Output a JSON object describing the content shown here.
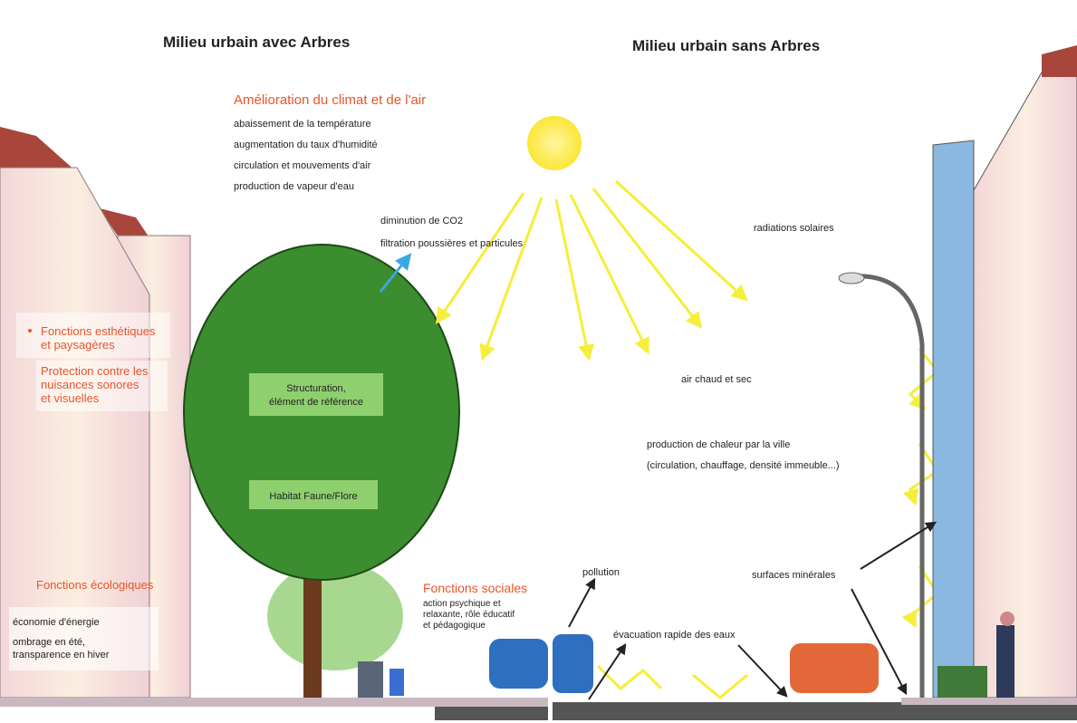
{
  "left": {
    "title": "Milieu urbain avec Arbres",
    "climate": {
      "heading": "Amélioration du climat et de l'air",
      "items": [
        "abaissement de la température",
        "augmentation du taux d'humidité",
        "circulation et mouvements d'air",
        "production de vapeur d'eau"
      ]
    },
    "air": [
      "diminution de CO2",
      "filtration poussières et particules"
    ],
    "aesthetic": [
      "Fonctions esthétiques",
      "et paysagères"
    ],
    "protection": [
      "Protection contre les",
      "nuisances sonores",
      "et visuelles"
    ],
    "structuring": [
      "Structuration,",
      "élément de référence"
    ],
    "habitat": "Habitat Faune/Flore",
    "ecological": {
      "heading": "Fonctions écologiques",
      "items": [
        "économie d'énergie",
        "ombrage en été,",
        "transparence en hiver"
      ]
    },
    "social": {
      "heading": "Fonctions sociales",
      "lines": [
        "action psychique et",
        "relaxante, rôle éducatif",
        "et pédagogique"
      ]
    }
  },
  "right": {
    "title": "Milieu urbain sans Arbres",
    "radiation": "radiations solaires",
    "hot_air": "air chaud et sec",
    "heat": [
      "production de chaleur par la ville",
      "(circulation, chauffage, densité immeuble...)"
    ],
    "pollution": "pollution",
    "surfaces": "surfaces minérales",
    "drainage": "évacuation rapide des eaux"
  }
}
